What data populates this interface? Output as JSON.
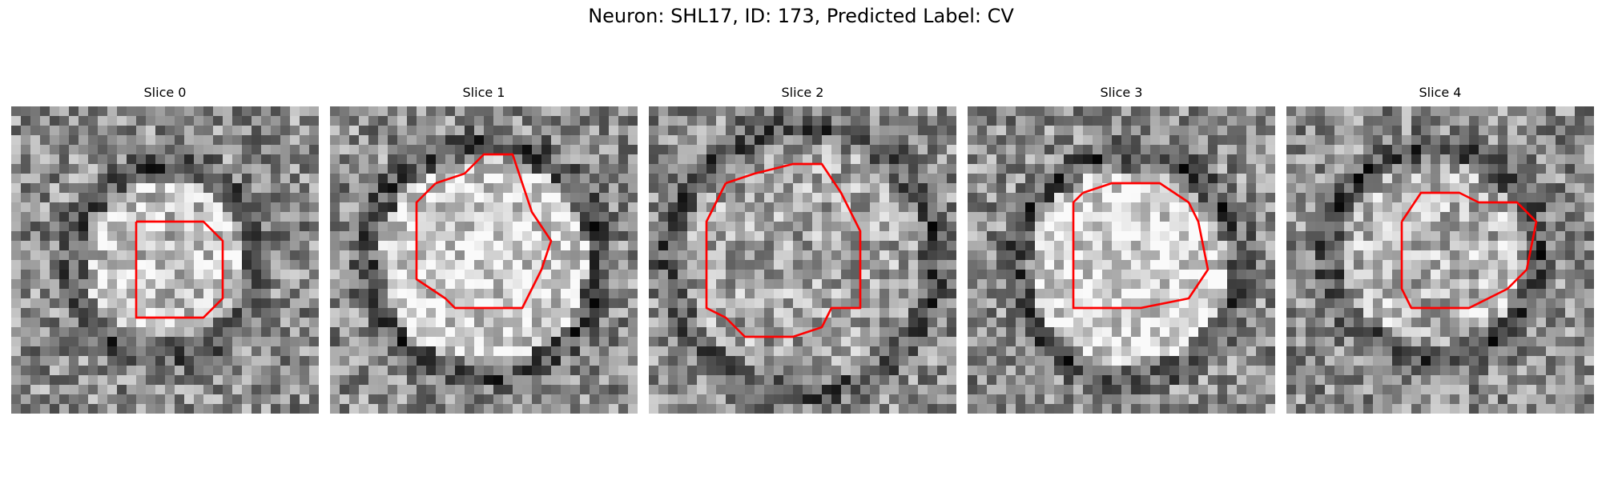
{
  "figure": {
    "title": "Neuron: SHL17, ID: 173, Predicted Label: CV"
  },
  "panels": [
    {
      "title": "Slice 0",
      "seed": 11,
      "center": 0.5,
      "ring": 0.34,
      "bright": 0.35,
      "contour": [
        [
          13,
          12
        ],
        [
          20,
          12
        ],
        [
          22,
          14
        ],
        [
          22,
          20
        ],
        [
          20,
          22
        ],
        [
          13,
          22
        ],
        [
          13,
          12
        ]
      ]
    },
    {
      "title": "Slice 1",
      "seed": 23,
      "center": 0.5,
      "ring": 0.42,
      "bright": 0.45,
      "contour": [
        [
          11,
          8
        ],
        [
          14,
          7
        ],
        [
          16,
          5
        ],
        [
          19,
          5
        ],
        [
          20,
          8
        ],
        [
          21,
          11
        ],
        [
          23,
          14
        ],
        [
          22,
          17
        ],
        [
          21,
          19
        ],
        [
          20,
          21
        ],
        [
          13,
          21
        ],
        [
          12,
          20
        ],
        [
          9,
          18
        ],
        [
          9,
          10
        ],
        [
          11,
          8
        ]
      ]
    },
    {
      "title": "Slice 2",
      "seed": 37,
      "center": 0.5,
      "ring": 0.48,
      "bright": 0.15,
      "contour": [
        [
          8,
          8
        ],
        [
          11,
          7
        ],
        [
          15,
          6
        ],
        [
          18,
          6
        ],
        [
          20,
          9
        ],
        [
          22,
          13
        ],
        [
          22,
          21
        ],
        [
          19,
          21
        ],
        [
          18,
          23
        ],
        [
          15,
          24
        ],
        [
          10,
          24
        ],
        [
          8,
          22
        ],
        [
          6,
          21
        ],
        [
          6,
          12
        ],
        [
          8,
          8
        ]
      ]
    },
    {
      "title": "Slice 3",
      "seed": 53,
      "center": 0.52,
      "ring": 0.4,
      "bright": 0.5,
      "contour": [
        [
          12,
          9
        ],
        [
          15,
          8
        ],
        [
          20,
          8
        ],
        [
          23,
          10
        ],
        [
          24,
          12
        ],
        [
          25,
          17
        ],
        [
          23,
          20
        ],
        [
          18,
          21
        ],
        [
          11,
          21
        ],
        [
          11,
          10
        ],
        [
          12,
          9
        ]
      ]
    },
    {
      "title": "Slice 4",
      "seed": 71,
      "center": 0.48,
      "ring": 0.38,
      "bright": 0.25,
      "contour": [
        [
          12,
          12
        ],
        [
          14,
          9
        ],
        [
          18,
          9
        ],
        [
          20,
          10
        ],
        [
          24,
          10
        ],
        [
          26,
          12
        ],
        [
          25,
          17
        ],
        [
          23,
          19
        ],
        [
          19,
          21
        ],
        [
          15,
          21
        ],
        [
          13,
          21
        ],
        [
          12,
          19
        ],
        [
          12,
          12
        ]
      ]
    }
  ],
  "colors": {
    "contour": "#ff0000"
  }
}
